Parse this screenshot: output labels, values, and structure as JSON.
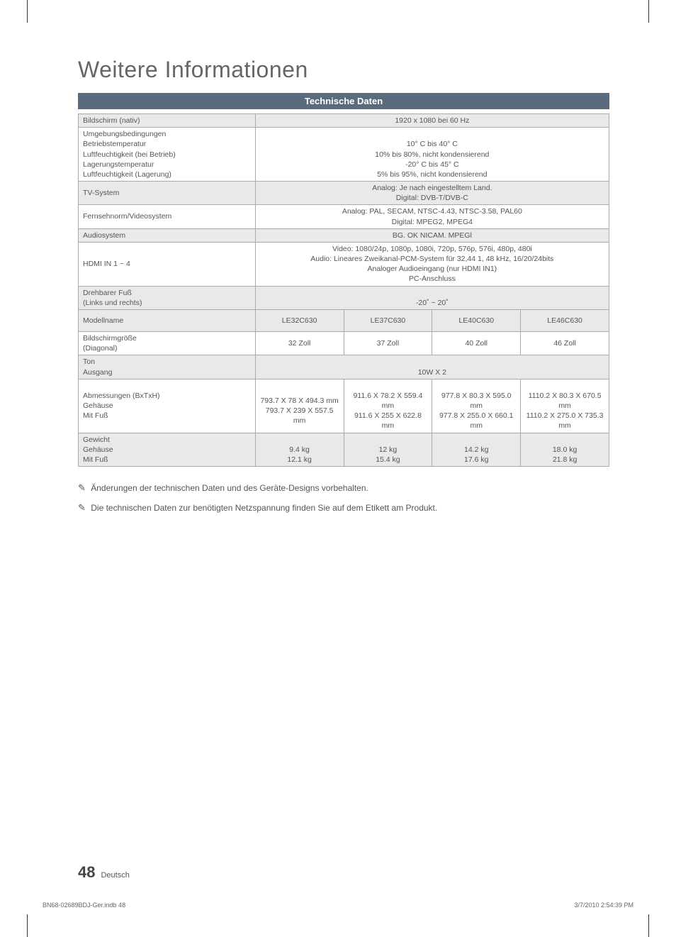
{
  "title": "Weitere Informationen",
  "section_header": "Technische Daten",
  "rows": {
    "r1": {
      "label": "Bildschirm (nativ)",
      "value": "1920 x 1080 bei 60 Hz"
    },
    "r2": {
      "label": "Umgebungsbedingungen\nBetriebstemperatur\nLuftfeuchtigkeit (bei Betrieb)\nLagerungstemperatur\nLuftfeuchtigkeit (Lagerung)",
      "value": "\n10° C bis 40° C\n10% bis 80%, nicht kondensierend\n-20° C bis 45° C\n5% bis 95%, nicht kondensierend"
    },
    "r3": {
      "label": "TV-System",
      "value": "Analog: Je nach eingestelltem Land.\nDigital: DVB-T/DVB-C"
    },
    "r4": {
      "label": "Fernsehnorm/Videosystem",
      "value": "Analog: PAL, SECAM, NTSC-4.43, NTSC-3.58, PAL60\nDigital: MPEG2, MPEG4"
    },
    "r5": {
      "label": "Audiosystem",
      "value": "BG. OK NICAM. MPEGl"
    },
    "r6": {
      "label": "HDMI IN 1 ~ 4",
      "value": "Video: 1080/24p, 1080p, 1080i, 720p, 576p, 576i, 480p, 480i\nAudio: Lineares Zweikanal-PCM-System für 32,44 1, 48 kHz, 16/20/24bits\nAnaloger Audioeingang (nur HDMI IN1)\nPC-Anschluss"
    },
    "r7": {
      "label": "Drehbarer Fuß\n(Links und rechts)",
      "value": "\n-20˚ ~ 20˚"
    }
  },
  "models": {
    "label": "Modellname",
    "cols": [
      "LE32C630",
      "LE37C630",
      "LE40C630",
      "LE46C630"
    ]
  },
  "screensize": {
    "label": "Bildschirmgröße\n(Diagonal)",
    "cols": [
      "32 Zoll",
      "37 Zoll",
      "40 Zoll",
      "46 Zoll"
    ]
  },
  "sound": {
    "label": "Ton\nAusgang",
    "value": "\n10W X 2"
  },
  "dims": {
    "label": "Abmessungen (BxTxH)\nGehäuse\nMit Fuß",
    "cols": [
      "\n793.7 X 78 X 494.3 mm\n793.7 X 239 X 557.5 mm",
      "\n911.6 X 78.2 X 559.4 mm\n911.6 X 255 X 622.8 mm",
      "\n977.8 X 80.3 X 595.0 mm\n977.8 X 255.0 X 660.1 mm",
      "\n1110.2 X 80.3 X 670.5 mm\n1110.2 X 275.0 X 735.3 mm"
    ]
  },
  "weight": {
    "label": "Gewicht\nGehäuse\nMit Fuß",
    "cols": [
      "\n9.4 kg\n12.1 kg",
      "\n12 kg\n15.4 kg",
      "\n14.2 kg\n17.6 kg",
      "\n18.0 kg\n21.8 kg"
    ]
  },
  "notes": {
    "n1": "Änderungen der technischen Daten und des Geräte-Designs vorbehalten.",
    "n2": "Die technischen Daten zur benötigten Netzspannung finden Sie auf dem Etikett am Produkt."
  },
  "footer": {
    "page_num": "48",
    "lang": "Deutsch",
    "file": "BN68-02689BDJ-Ger.indb   48",
    "timestamp": "3/7/2010   2:54:39 PM"
  },
  "note_icon": "✎"
}
